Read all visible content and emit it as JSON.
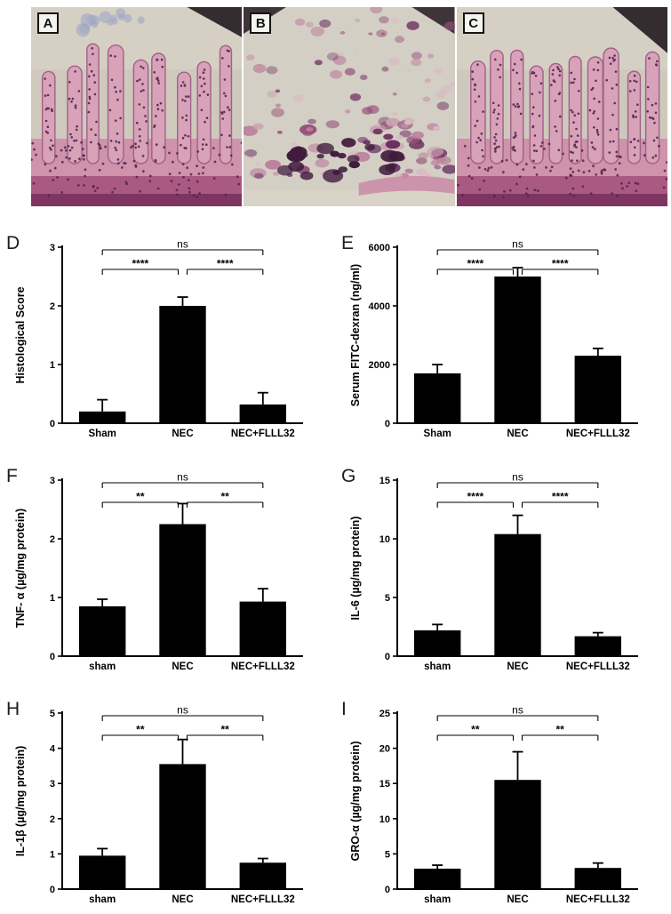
{
  "figure": {
    "histology_panels": [
      {
        "label": "A"
      },
      {
        "label": "B"
      },
      {
        "label": "C"
      }
    ],
    "histology_palette": {
      "background": "#cfc9bd",
      "tissue_pink": "#d8a2b8",
      "tissue_dark": "#7e3660",
      "nuclei": "#5e2f58"
    }
  },
  "chart_data": [
    {
      "panel_label": "D",
      "type": "bar",
      "categories": [
        "Sham",
        "NEC",
        "NEC+FLLL32"
      ],
      "values": [
        0.2,
        2.0,
        0.32
      ],
      "errors": [
        0.2,
        0.15,
        0.2
      ],
      "title": "",
      "xlabel": "",
      "ylabel": "Histological Score",
      "ylim": [
        0,
        3
      ],
      "yticks": [
        0,
        1,
        2,
        3
      ],
      "bar_color": "#000000",
      "comparisons": [
        {
          "from": 0,
          "to": 1,
          "label": "****"
        },
        {
          "from": 1,
          "to": 2,
          "label": "****"
        },
        {
          "from": 0,
          "to": 2,
          "label": "ns"
        }
      ]
    },
    {
      "panel_label": "E",
      "type": "bar",
      "categories": [
        "Sham",
        "NEC",
        "NEC+FLLL32"
      ],
      "values": [
        1700,
        5000,
        2300
      ],
      "errors": [
        300,
        300,
        250
      ],
      "title": "",
      "xlabel": "",
      "ylabel": "Serum FITC-dexran  (ng/ml)",
      "ylim": [
        0,
        6000
      ],
      "yticks": [
        0,
        2000,
        4000,
        6000
      ],
      "bar_color": "#000000",
      "comparisons": [
        {
          "from": 0,
          "to": 1,
          "label": "****"
        },
        {
          "from": 1,
          "to": 2,
          "label": "****"
        },
        {
          "from": 0,
          "to": 2,
          "label": "ns"
        }
      ]
    },
    {
      "panel_label": "F",
      "type": "bar",
      "categories": [
        "sham",
        "NEC",
        "NEC+FLLL32"
      ],
      "values": [
        0.85,
        2.25,
        0.93
      ],
      "errors": [
        0.12,
        0.35,
        0.22
      ],
      "title": "",
      "xlabel": "",
      "ylabel": "TNF- α (µg/mg protein)",
      "ylim": [
        0,
        3
      ],
      "yticks": [
        0,
        1,
        2,
        3
      ],
      "bar_color": "#000000",
      "comparisons": [
        {
          "from": 0,
          "to": 1,
          "label": "**"
        },
        {
          "from": 1,
          "to": 2,
          "label": "**"
        },
        {
          "from": 0,
          "to": 2,
          "label": "ns"
        }
      ]
    },
    {
      "panel_label": "G",
      "type": "bar",
      "categories": [
        "sham",
        "NEC",
        "NEC+FLLL32"
      ],
      "values": [
        2.2,
        10.4,
        1.7
      ],
      "errors": [
        0.5,
        1.6,
        0.3
      ],
      "title": "",
      "xlabel": "",
      "ylabel": "IL-6 (µg/mg protein)",
      "ylim": [
        0,
        15
      ],
      "yticks": [
        0,
        5,
        10,
        15
      ],
      "bar_color": "#000000",
      "comparisons": [
        {
          "from": 0,
          "to": 1,
          "label": "****"
        },
        {
          "from": 1,
          "to": 2,
          "label": "****"
        },
        {
          "from": 0,
          "to": 2,
          "label": "ns"
        }
      ]
    },
    {
      "panel_label": "H",
      "type": "bar",
      "categories": [
        "sham",
        "NEC",
        "NEC+FLLL32"
      ],
      "values": [
        0.95,
        3.55,
        0.75
      ],
      "errors": [
        0.2,
        0.7,
        0.12
      ],
      "title": "",
      "xlabel": "",
      "ylabel": "IL-1β (µg/mg protein)",
      "ylim": [
        0,
        5
      ],
      "yticks": [
        0,
        1,
        2,
        3,
        4,
        5
      ],
      "bar_color": "#000000",
      "comparisons": [
        {
          "from": 0,
          "to": 1,
          "label": "**"
        },
        {
          "from": 1,
          "to": 2,
          "label": "**"
        },
        {
          "from": 0,
          "to": 2,
          "label": "ns"
        }
      ]
    },
    {
      "panel_label": "I",
      "type": "bar",
      "categories": [
        "sham",
        "NEC",
        "NEC+FLLL32"
      ],
      "values": [
        2.9,
        15.5,
        3.0
      ],
      "errors": [
        0.5,
        4.0,
        0.7
      ],
      "title": "",
      "xlabel": "",
      "ylabel": "GRO-α (µg/mg protein)",
      "ylim": [
        0,
        25
      ],
      "yticks": [
        0,
        5,
        10,
        15,
        20,
        25
      ],
      "bar_color": "#000000",
      "comparisons": [
        {
          "from": 0,
          "to": 1,
          "label": "**"
        },
        {
          "from": 1,
          "to": 2,
          "label": "**"
        },
        {
          "from": 0,
          "to": 2,
          "label": "ns"
        }
      ]
    }
  ]
}
